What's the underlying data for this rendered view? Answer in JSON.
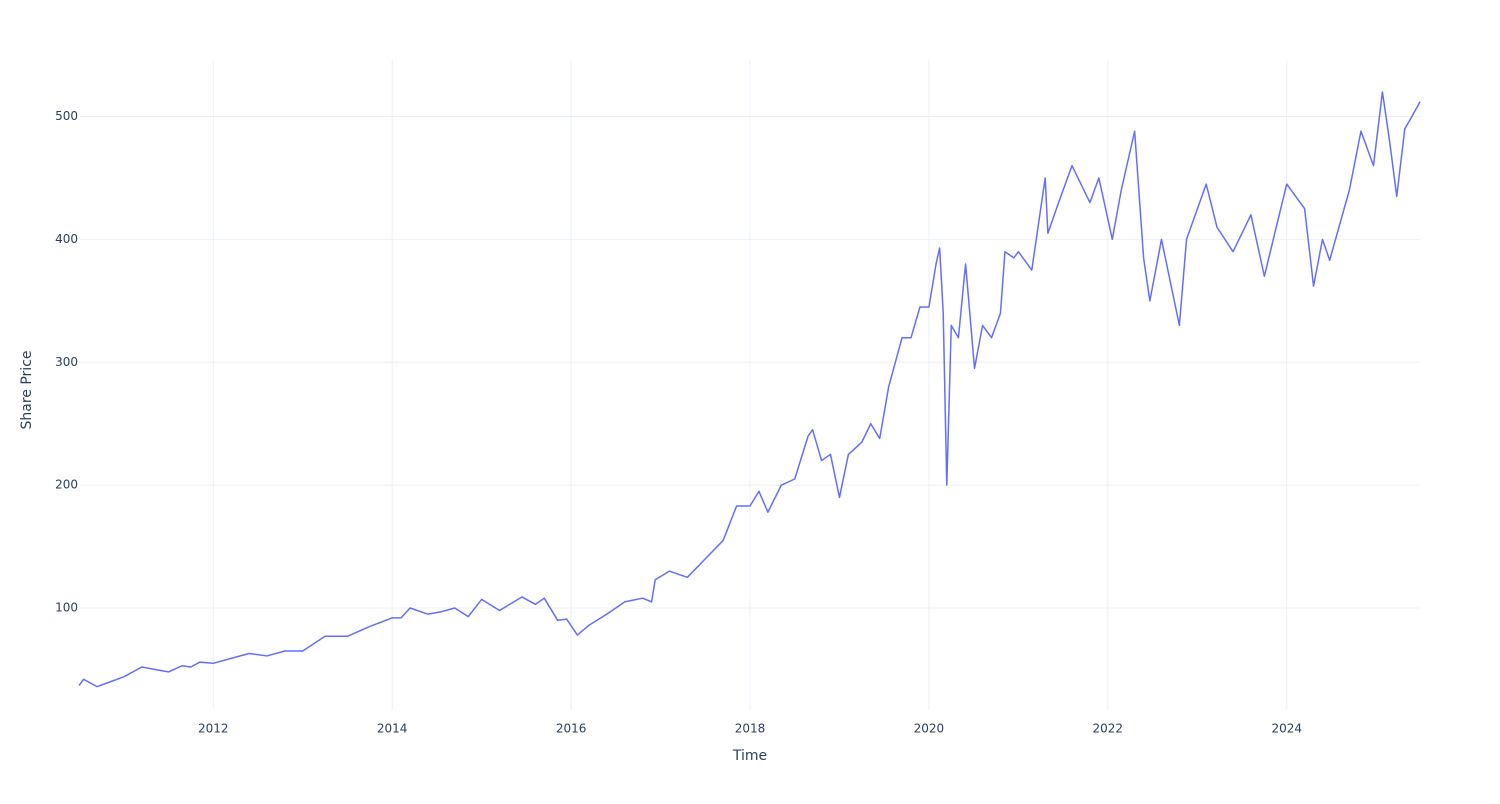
{
  "chart_data": {
    "type": "line",
    "x_title": "Time",
    "y_title": "Share Price",
    "x": [
      2010.5,
      2010.55,
      2010.7,
      2010.85,
      2011.0,
      2011.2,
      2011.35,
      2011.5,
      2011.65,
      2011.75,
      2011.85,
      2012.0,
      2012.2,
      2012.4,
      2012.6,
      2012.8,
      2013.0,
      2013.25,
      2013.5,
      2013.75,
      2014.0,
      2014.1,
      2014.2,
      2014.4,
      2014.55,
      2014.7,
      2014.85,
      2015.0,
      2015.2,
      2015.45,
      2015.6,
      2015.7,
      2015.85,
      2015.95,
      2016.07,
      2016.2,
      2016.4,
      2016.6,
      2016.8,
      2016.9,
      2016.94,
      2017.1,
      2017.3,
      2017.5,
      2017.7,
      2017.85,
      2018.0,
      2018.1,
      2018.2,
      2018.35,
      2018.5,
      2018.65,
      2018.7,
      2018.8,
      2018.9,
      2019.0,
      2019.1,
      2019.25,
      2019.35,
      2019.45,
      2019.55,
      2019.7,
      2019.8,
      2019.9,
      2020.0,
      2020.08,
      2020.12,
      2020.16,
      2020.2,
      2020.25,
      2020.33,
      2020.41,
      2020.51,
      2020.6,
      2020.7,
      2020.8,
      2020.85,
      2020.95,
      2021.0,
      2021.15,
      2021.3,
      2021.33,
      2021.45,
      2021.6,
      2021.8,
      2021.9,
      2022.05,
      2022.15,
      2022.3,
      2022.4,
      2022.47,
      2022.6,
      2022.8,
      2022.88,
      2023.1,
      2023.22,
      2023.4,
      2023.6,
      2023.75,
      2024.0,
      2024.2,
      2024.3,
      2024.4,
      2024.48,
      2024.7,
      2024.83,
      2024.97,
      2025.07,
      2025.15,
      2025.23,
      2025.32,
      2025.4,
      2025.49
    ],
    "series": [
      {
        "name": "Share Price",
        "color": "#636efa",
        "values": [
          37,
          42,
          36,
          40,
          44,
          52,
          50,
          48,
          53,
          52,
          56,
          55,
          59,
          63,
          61,
          65,
          65,
          77,
          77,
          85,
          92,
          92,
          100,
          95,
          97,
          100,
          93,
          107,
          98,
          109,
          103,
          108,
          90,
          91,
          78,
          86,
          95,
          105,
          108,
          105,
          123,
          130,
          125,
          140,
          155,
          183,
          183,
          195,
          178,
          200,
          205,
          240,
          245,
          220,
          225,
          190,
          225,
          235,
          250,
          238,
          280,
          320,
          320,
          345,
          345,
          380,
          393,
          340,
          200,
          330,
          320,
          380,
          295,
          330,
          320,
          340,
          390,
          385,
          390,
          375,
          450,
          405,
          430,
          460,
          430,
          450,
          400,
          440,
          488,
          385,
          350,
          400,
          330,
          400,
          445,
          410,
          390,
          420,
          370,
          445,
          425,
          362,
          400,
          383,
          440,
          488,
          460,
          520,
          480,
          435,
          490,
          500,
          512
        ]
      }
    ],
    "xlim": [
      2010.51,
      2025.49
    ],
    "xticks": [
      2012,
      2014,
      2016,
      2018,
      2020,
      2022,
      2024
    ],
    "ylim": [
      17,
      546
    ],
    "yticks": [
      100,
      200,
      300,
      400,
      500
    ],
    "grid": true
  }
}
